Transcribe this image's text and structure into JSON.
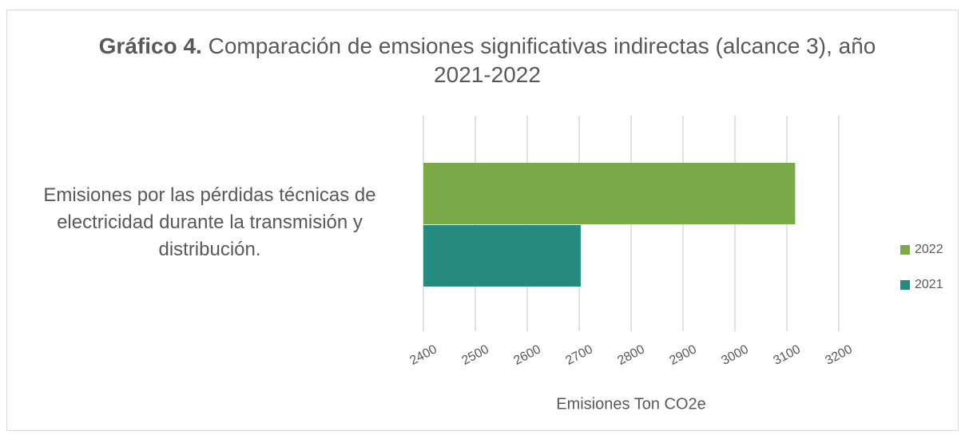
{
  "chart_data": {
    "type": "hbar",
    "title_label": "Gráfico 4.",
    "title": "Comparación de emsiones significativas indirectas (alcance 3), año 2021-2022",
    "categories": [
      "Emisiones por las pérdidas técnicas  de electricidad durante la transmisión y distribución."
    ],
    "series": [
      {
        "name": "2022",
        "color": "#7aab48",
        "values": [
          3116
        ]
      },
      {
        "name": "2021",
        "color": "#268a7e",
        "values": [
          2703
        ]
      }
    ],
    "xlabel": "Emisiones Ton CO2e",
    "xlim": [
      2400,
      3200
    ],
    "xticks": [
      2400,
      2500,
      2600,
      2700,
      2800,
      2900,
      3000,
      3100,
      3200
    ],
    "grid": true,
    "legend": "right"
  }
}
